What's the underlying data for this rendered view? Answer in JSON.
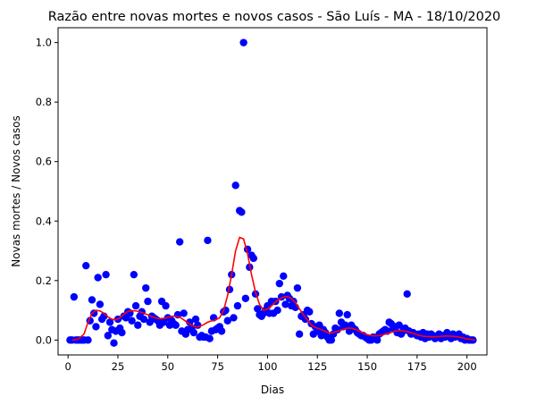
{
  "chart_data": {
    "type": "scatter",
    "title": "Razão entre novas mortes e novos casos - São Luís - MA - 18/10/2020",
    "xlabel": "Dias",
    "ylabel": "Novas mortes / Novos casos",
    "xlim": [
      -5,
      210
    ],
    "ylim": [
      -0.05,
      1.05
    ],
    "xticks": [
      0,
      25,
      50,
      75,
      100,
      125,
      150,
      175,
      200
    ],
    "yticks": [
      0.0,
      0.2,
      0.4,
      0.6,
      0.8,
      1.0
    ],
    "xtick_labels": [
      "0",
      "25",
      "50",
      "75",
      "100",
      "125",
      "150",
      "175",
      "200"
    ],
    "ytick_labels": [
      "0.0",
      "0.2",
      "0.4",
      "0.6",
      "0.8",
      "1.0"
    ],
    "grid": false,
    "scatter_color": "#0000ff",
    "line_color": "#ff0000",
    "points": [
      [
        1,
        0.0
      ],
      [
        2,
        0.0
      ],
      [
        3,
        0.145
      ],
      [
        4,
        0.0
      ],
      [
        5,
        0.0
      ],
      [
        6,
        0.0
      ],
      [
        7,
        0.0
      ],
      [
        8,
        0.0
      ],
      [
        9,
        0.25
      ],
      [
        10,
        0.0
      ],
      [
        11,
        0.065
      ],
      [
        12,
        0.135
      ],
      [
        13,
        0.09
      ],
      [
        14,
        0.045
      ],
      [
        15,
        0.21
      ],
      [
        16,
        0.12
      ],
      [
        17,
        0.07
      ],
      [
        18,
        0.08
      ],
      [
        19,
        0.22
      ],
      [
        20,
        0.015
      ],
      [
        21,
        0.06
      ],
      [
        22,
        0.035
      ],
      [
        23,
        -0.01
      ],
      [
        24,
        0.03
      ],
      [
        25,
        0.07
      ],
      [
        26,
        0.04
      ],
      [
        27,
        0.025
      ],
      [
        28,
        0.08
      ],
      [
        29,
        0.075
      ],
      [
        30,
        0.095
      ],
      [
        31,
        0.09
      ],
      [
        32,
        0.065
      ],
      [
        33,
        0.22
      ],
      [
        34,
        0.115
      ],
      [
        35,
        0.05
      ],
      [
        36,
        0.08
      ],
      [
        37,
        0.095
      ],
      [
        38,
        0.07
      ],
      [
        39,
        0.175
      ],
      [
        40,
        0.13
      ],
      [
        41,
        0.06
      ],
      [
        42,
        0.08
      ],
      [
        43,
        0.075
      ],
      [
        44,
        0.07
      ],
      [
        45,
        0.065
      ],
      [
        46,
        0.05
      ],
      [
        47,
        0.13
      ],
      [
        48,
        0.06
      ],
      [
        49,
        0.115
      ],
      [
        50,
        0.075
      ],
      [
        51,
        0.05
      ],
      [
        52,
        0.065
      ],
      [
        53,
        0.055
      ],
      [
        54,
        0.05
      ],
      [
        55,
        0.085
      ],
      [
        56,
        0.33
      ],
      [
        57,
        0.03
      ],
      [
        58,
        0.09
      ],
      [
        59,
        0.02
      ],
      [
        60,
        0.035
      ],
      [
        61,
        0.06
      ],
      [
        62,
        0.04
      ],
      [
        63,
        0.025
      ],
      [
        64,
        0.07
      ],
      [
        65,
        0.05
      ],
      [
        66,
        0.01
      ],
      [
        67,
        0.015
      ],
      [
        68,
        0.01
      ],
      [
        69,
        0.01
      ],
      [
        70,
        0.335
      ],
      [
        71,
        0.005
      ],
      [
        72,
        0.03
      ],
      [
        73,
        0.075
      ],
      [
        74,
        0.035
      ],
      [
        75,
        0.04
      ],
      [
        76,
        0.045
      ],
      [
        77,
        0.03
      ],
      [
        78,
        0.095
      ],
      [
        79,
        0.1
      ],
      [
        80,
        0.065
      ],
      [
        81,
        0.17
      ],
      [
        82,
        0.22
      ],
      [
        83,
        0.075
      ],
      [
        84,
        0.52
      ],
      [
        85,
        0.115
      ],
      [
        86,
        0.435
      ],
      [
        87,
        0.43
      ],
      [
        88,
        1.0
      ],
      [
        89,
        0.14
      ],
      [
        90,
        0.305
      ],
      [
        91,
        0.245
      ],
      [
        92,
        0.285
      ],
      [
        93,
        0.275
      ],
      [
        94,
        0.155
      ],
      [
        95,
        0.105
      ],
      [
        96,
        0.085
      ],
      [
        97,
        0.08
      ],
      [
        98,
        0.09
      ],
      [
        99,
        0.1
      ],
      [
        100,
        0.115
      ],
      [
        101,
        0.09
      ],
      [
        102,
        0.13
      ],
      [
        103,
        0.09
      ],
      [
        104,
        0.13
      ],
      [
        105,
        0.1
      ],
      [
        106,
        0.19
      ],
      [
        107,
        0.145
      ],
      [
        108,
        0.215
      ],
      [
        109,
        0.12
      ],
      [
        110,
        0.15
      ],
      [
        111,
        0.14
      ],
      [
        112,
        0.115
      ],
      [
        113,
        0.13
      ],
      [
        114,
        0.11
      ],
      [
        115,
        0.175
      ],
      [
        116,
        0.02
      ],
      [
        117,
        0.08
      ],
      [
        118,
        0.085
      ],
      [
        119,
        0.07
      ],
      [
        120,
        0.1
      ],
      [
        121,
        0.095
      ],
      [
        122,
        0.055
      ],
      [
        123,
        0.02
      ],
      [
        124,
        0.045
      ],
      [
        125,
        0.03
      ],
      [
        126,
        0.05
      ],
      [
        127,
        0.015
      ],
      [
        128,
        0.035
      ],
      [
        129,
        0.025
      ],
      [
        130,
        0.01
      ],
      [
        131,
        0.0
      ],
      [
        132,
        0.0
      ],
      [
        133,
        0.02
      ],
      [
        134,
        0.04
      ],
      [
        135,
        0.035
      ],
      [
        136,
        0.09
      ],
      [
        137,
        0.06
      ],
      [
        138,
        0.045
      ],
      [
        139,
        0.05
      ],
      [
        140,
        0.085
      ],
      [
        141,
        0.03
      ],
      [
        142,
        0.05
      ],
      [
        143,
        0.04
      ],
      [
        144,
        0.035
      ],
      [
        145,
        0.025
      ],
      [
        146,
        0.02
      ],
      [
        147,
        0.015
      ],
      [
        148,
        0.015
      ],
      [
        149,
        0.01
      ],
      [
        150,
        0.005
      ],
      [
        151,
        0.0
      ],
      [
        152,
        0.0
      ],
      [
        153,
        0.01
      ],
      [
        154,
        0.005
      ],
      [
        155,
        0.0
      ],
      [
        156,
        0.02
      ],
      [
        157,
        0.025
      ],
      [
        158,
        0.03
      ],
      [
        159,
        0.035
      ],
      [
        160,
        0.03
      ],
      [
        161,
        0.06
      ],
      [
        162,
        0.055
      ],
      [
        163,
        0.04
      ],
      [
        164,
        0.045
      ],
      [
        165,
        0.025
      ],
      [
        166,
        0.05
      ],
      [
        167,
        0.02
      ],
      [
        168,
        0.03
      ],
      [
        169,
        0.04
      ],
      [
        170,
        0.155
      ],
      [
        171,
        0.03
      ],
      [
        172,
        0.02
      ],
      [
        173,
        0.025
      ],
      [
        174,
        0.02
      ],
      [
        175,
        0.015
      ],
      [
        176,
        0.02
      ],
      [
        177,
        0.01
      ],
      [
        178,
        0.025
      ],
      [
        179,
        0.005
      ],
      [
        180,
        0.02
      ],
      [
        181,
        0.01
      ],
      [
        182,
        0.02
      ],
      [
        183,
        0.015
      ],
      [
        184,
        0.005
      ],
      [
        185,
        0.01
      ],
      [
        186,
        0.02
      ],
      [
        187,
        0.005
      ],
      [
        188,
        0.015
      ],
      [
        189,
        0.01
      ],
      [
        190,
        0.025
      ],
      [
        191,
        0.015
      ],
      [
        192,
        0.005
      ],
      [
        193,
        0.02
      ],
      [
        194,
        0.01
      ],
      [
        195,
        0.015
      ],
      [
        196,
        0.02
      ],
      [
        197,
        0.005
      ],
      [
        198,
        0.01
      ],
      [
        199,
        0.0
      ],
      [
        200,
        0.005
      ],
      [
        201,
        0.0
      ],
      [
        202,
        0.0
      ],
      [
        203,
        0.0
      ]
    ],
    "trend_line": [
      [
        2,
        0.0
      ],
      [
        5,
        0.003
      ],
      [
        8,
        0.02
      ],
      [
        10,
        0.06
      ],
      [
        12,
        0.09
      ],
      [
        14,
        0.1
      ],
      [
        16,
        0.098
      ],
      [
        18,
        0.09
      ],
      [
        20,
        0.078
      ],
      [
        22,
        0.07
      ],
      [
        24,
        0.068
      ],
      [
        26,
        0.075
      ],
      [
        28,
        0.087
      ],
      [
        30,
        0.096
      ],
      [
        32,
        0.099
      ],
      [
        34,
        0.098
      ],
      [
        36,
        0.095
      ],
      [
        38,
        0.09
      ],
      [
        40,
        0.085
      ],
      [
        42,
        0.079
      ],
      [
        44,
        0.074
      ],
      [
        46,
        0.072
      ],
      [
        48,
        0.073
      ],
      [
        50,
        0.076
      ],
      [
        52,
        0.08
      ],
      [
        54,
        0.08
      ],
      [
        56,
        0.077
      ],
      [
        58,
        0.068
      ],
      [
        60,
        0.058
      ],
      [
        62,
        0.049
      ],
      [
        64,
        0.044
      ],
      [
        66,
        0.046
      ],
      [
        68,
        0.052
      ],
      [
        70,
        0.06
      ],
      [
        72,
        0.065
      ],
      [
        74,
        0.068
      ],
      [
        76,
        0.075
      ],
      [
        78,
        0.1
      ],
      [
        80,
        0.15
      ],
      [
        82,
        0.22
      ],
      [
        84,
        0.3
      ],
      [
        86,
        0.345
      ],
      [
        88,
        0.34
      ],
      [
        90,
        0.29
      ],
      [
        92,
        0.22
      ],
      [
        94,
        0.16
      ],
      [
        96,
        0.12
      ],
      [
        98,
        0.1
      ],
      [
        100,
        0.105
      ],
      [
        102,
        0.115
      ],
      [
        104,
        0.128
      ],
      [
        106,
        0.138
      ],
      [
        108,
        0.145
      ],
      [
        110,
        0.146
      ],
      [
        112,
        0.14
      ],
      [
        114,
        0.125
      ],
      [
        116,
        0.105
      ],
      [
        118,
        0.085
      ],
      [
        120,
        0.068
      ],
      [
        122,
        0.05
      ],
      [
        124,
        0.042
      ],
      [
        126,
        0.038
      ],
      [
        128,
        0.032
      ],
      [
        130,
        0.026
      ],
      [
        132,
        0.024
      ],
      [
        134,
        0.027
      ],
      [
        136,
        0.032
      ],
      [
        138,
        0.036
      ],
      [
        140,
        0.04
      ],
      [
        142,
        0.04
      ],
      [
        144,
        0.036
      ],
      [
        146,
        0.03
      ],
      [
        148,
        0.023
      ],
      [
        150,
        0.018
      ],
      [
        152,
        0.015
      ],
      [
        154,
        0.014
      ],
      [
        156,
        0.015
      ],
      [
        158,
        0.018
      ],
      [
        160,
        0.022
      ],
      [
        162,
        0.026
      ],
      [
        164,
        0.03
      ],
      [
        166,
        0.032
      ],
      [
        168,
        0.031
      ],
      [
        170,
        0.028
      ],
      [
        172,
        0.025
      ],
      [
        174,
        0.02
      ],
      [
        176,
        0.016
      ],
      [
        178,
        0.013
      ],
      [
        180,
        0.012
      ],
      [
        182,
        0.011
      ],
      [
        184,
        0.011
      ],
      [
        186,
        0.012
      ],
      [
        188,
        0.013
      ],
      [
        190,
        0.014
      ],
      [
        192,
        0.013
      ],
      [
        194,
        0.012
      ],
      [
        196,
        0.01
      ],
      [
        198,
        0.007
      ],
      [
        200,
        0.004
      ],
      [
        202,
        0.002
      ],
      [
        204,
        0.0
      ]
    ]
  }
}
